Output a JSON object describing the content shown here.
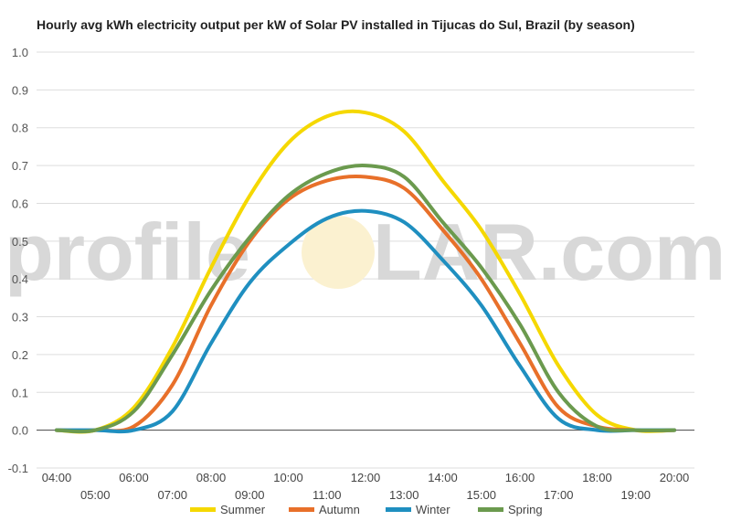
{
  "chart_data": {
    "type": "line",
    "title": "Hourly avg kWh electricity output per kW of Solar PV installed in Tijucas do Sul, Brazil (by season)",
    "watermark": {
      "left": "profile",
      "right": "LAR.com"
    },
    "x": [
      "04:00",
      "05:00",
      "06:00",
      "07:00",
      "08:00",
      "09:00",
      "10:00",
      "11:00",
      "12:00",
      "13:00",
      "14:00",
      "15:00",
      "16:00",
      "17:00",
      "18:00",
      "19:00",
      "20:00"
    ],
    "ylim": [
      -0.1,
      1.0
    ],
    "yticks": [
      "1.0",
      "0.9",
      "0.8",
      "0.7",
      "0.6",
      "0.5",
      "0.4",
      "0.3",
      "0.2",
      "0.1",
      "0.0",
      "-0.1"
    ],
    "ytick_values": [
      1.0,
      0.9,
      0.8,
      0.7,
      0.6,
      0.5,
      0.4,
      0.3,
      0.2,
      0.1,
      0.0,
      -0.1
    ],
    "grid": true,
    "legend_position": "bottom",
    "series": [
      {
        "name": "Summer",
        "color": "#f5d800",
        "values": [
          0.0,
          0.0,
          0.06,
          0.22,
          0.43,
          0.62,
          0.76,
          0.83,
          0.84,
          0.79,
          0.66,
          0.53,
          0.36,
          0.17,
          0.04,
          0.0,
          0.0
        ]
      },
      {
        "name": "Autumn",
        "color": "#e8702a",
        "values": [
          0.0,
          0.0,
          0.01,
          0.12,
          0.33,
          0.5,
          0.61,
          0.66,
          0.67,
          0.64,
          0.53,
          0.4,
          0.23,
          0.06,
          0.01,
          0.0,
          0.0
        ]
      },
      {
        "name": "Winter",
        "color": "#1f8fc0",
        "values": [
          0.0,
          0.0,
          0.0,
          0.05,
          0.23,
          0.39,
          0.49,
          0.56,
          0.58,
          0.55,
          0.45,
          0.33,
          0.17,
          0.03,
          0.0,
          0.0,
          0.0
        ]
      },
      {
        "name": "Spring",
        "color": "#6b9a4e",
        "values": [
          0.0,
          0.0,
          0.05,
          0.2,
          0.37,
          0.51,
          0.62,
          0.68,
          0.7,
          0.67,
          0.55,
          0.43,
          0.28,
          0.1,
          0.01,
          0.0,
          0.0
        ]
      }
    ]
  }
}
